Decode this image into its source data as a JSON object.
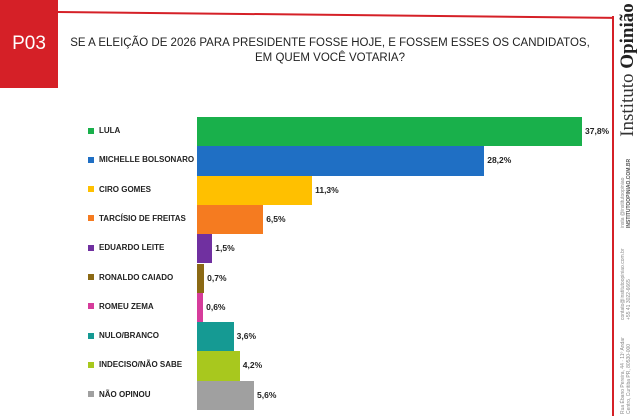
{
  "slide": {
    "code": "P03",
    "accent_color": "#d52027",
    "brand_prefix": "Instituto ",
    "brand_name": "Opinião",
    "side_text": {
      "social_1": "insta @institutoopiniao",
      "site": "INSTITUTOOPINIAO.COM.BR",
      "email": "contato@institutoopiniao.com.br",
      "phone": "+55 41 3022-6665",
      "address_1": "Rua Ébano Pereira, 44 · 11º Andar",
      "address_2": "Centro, Curitiba PR, 80530-000"
    }
  },
  "chart_data": {
    "type": "bar",
    "orientation": "horizontal",
    "title": "SE A ELEIÇÃO DE 2026 PARA PRESIDENTE FOSSE HOJE, E FOSSEM ESSES OS CANDIDATOS, EM QUEM VOCÊ VOTARIA?",
    "categories": [
      "LULA",
      "MICHELLE BOLSONARO",
      "CIRO GOMES",
      "TARCÍSIO DE FREITAS",
      "EDUARDO LEITE",
      "RONALDO CAIADO",
      "ROMEU ZEMA",
      "NULO/BRANCO",
      "INDECISO/NÃO SABE",
      "NÃO OPINOU"
    ],
    "values": [
      37.8,
      28.2,
      11.3,
      6.5,
      1.5,
      0.7,
      0.6,
      3.6,
      4.2,
      5.6
    ],
    "labels": [
      "37,8%",
      "28,2%",
      "11,3%",
      "6,5%",
      "1,5%",
      "0,7%",
      "0,6%",
      "3,6%",
      "4,2%",
      "5,6%"
    ],
    "colors": [
      "#19b04b",
      "#1f6fc4",
      "#ffc000",
      "#f57b20",
      "#7030a0",
      "#8b6914",
      "#d63c9b",
      "#159a93",
      "#a8c81e",
      "#a0a0a0"
    ],
    "xlim": [
      0,
      38
    ],
    "grid": false,
    "legend": "left"
  }
}
